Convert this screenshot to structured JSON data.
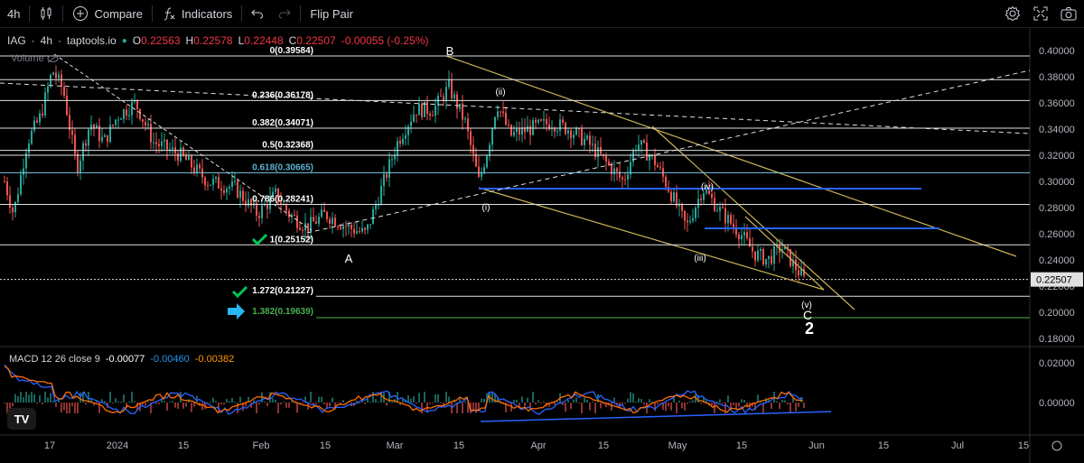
{
  "toolbar": {
    "interval": "4h",
    "compare_label": "Compare",
    "indicators_label": "Indicators",
    "flip_label": "Flip Pair"
  },
  "legend": {
    "symbol": "IAG",
    "interval": "4h",
    "source": "taptools.io",
    "open_key": "O",
    "open": "0.22563",
    "high_key": "H",
    "high": "0.22578",
    "low_key": "L",
    "low": "0.22448",
    "close_key": "C",
    "close": "0.22507",
    "change": "-0.00055 (-0.25%)",
    "volume_label": "Volume"
  },
  "macd": {
    "label": "MACD 12 26 close 9",
    "v1": "-0.00077",
    "v2": "-0.00460",
    "v3": "-0.00382",
    "axis": [
      "0.02000",
      "0.00000",
      "-0.02000"
    ]
  },
  "colors": {
    "bg": "#000000",
    "up": "#26a69a",
    "down": "#ef5350",
    "fib": "#e0e0e0",
    "trend": "#c9b458",
    "blue_zone": "#2962ff",
    "macd": "#2962ff",
    "signal": "#ff6d00",
    "accent": "#22ab94",
    "target_arrow": "#29b6f6",
    "check": "#00c853"
  },
  "chart_data": {
    "type": "candlestick",
    "y_axis": [
      "0.40000",
      "0.38000",
      "0.36000",
      "0.34000",
      "0.32000",
      "0.30000",
      "0.28000",
      "0.26000",
      "0.24000",
      "0.22000",
      "0.20000",
      "0.18000"
    ],
    "ylim": [
      0.17,
      0.41
    ],
    "x_axis": [
      "17",
      "2024",
      "15",
      "Feb",
      "15",
      "Mar",
      "15",
      "Apr",
      "15",
      "May",
      "15",
      "Jun",
      "15",
      "Jul",
      "15"
    ],
    "last_price": "0.22507",
    "fib_levels": [
      {
        "label": "0(0.39584)",
        "value": 0.39584
      },
      {
        "label": "",
        "value": 0.3778
      },
      {
        "label": "0.236(0.36178)",
        "value": 0.36178
      },
      {
        "label": "0.382(0.34071)",
        "value": 0.34071
      },
      {
        "label": "0.5(0.32368)",
        "value": 0.32368
      },
      {
        "label": "",
        "value": 0.32
      },
      {
        "label": "0.618(0.30665)",
        "value": 0.30665
      },
      {
        "label": "0.786(0.28241)",
        "value": 0.28241
      },
      {
        "label": "1(0.25152)",
        "value": 0.25152
      },
      {
        "label": "1.272(0.21227)",
        "value": 0.21227
      },
      {
        "label": "1.382(0.19639)",
        "value": 0.19639
      }
    ],
    "wave_labels": [
      "A",
      "B",
      "(i)",
      "(ii)",
      "(iii)",
      "(iv)",
      "(v)",
      "C",
      "2"
    ]
  }
}
